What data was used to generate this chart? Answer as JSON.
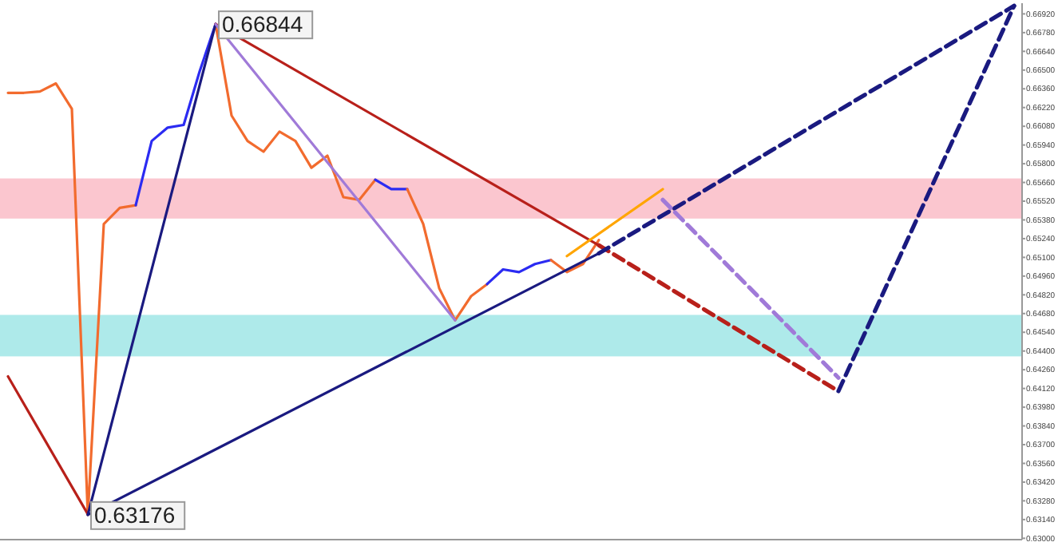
{
  "chart_data": {
    "type": "line",
    "categories": [
      null,
      null,
      null,
      null,
      null,
      null,
      null,
      null,
      null,
      null,
      null,
      null,
      null,
      null,
      null,
      null,
      null,
      null,
      null,
      null,
      null,
      null,
      null,
      null,
      null,
      null,
      null,
      null,
      null,
      null,
      null,
      null,
      null,
      null,
      null,
      null,
      null,
      null,
      null,
      null,
      null,
      null,
      null,
      null,
      null,
      null,
      null,
      null,
      null,
      null,
      null,
      null,
      null,
      null,
      null,
      null,
      null,
      null,
      null,
      null,
      null,
      null,
      null,
      null
    ],
    "ylim": [
      0.6299,
      0.67
    ],
    "yticks": [
      {
        "value": 0.63,
        "label": "0.63000"
      },
      {
        "value": 0.6314,
        "label": "0.63140"
      },
      {
        "value": 0.6328,
        "label": "0.63280"
      },
      {
        "value": 0.6342,
        "label": "0.63420"
      },
      {
        "value": 0.6356,
        "label": "0.63560"
      },
      {
        "value": 0.637,
        "label": "0.63700"
      },
      {
        "value": 0.6384,
        "label": "0.63840"
      },
      {
        "value": 0.6398,
        "label": "0.63980"
      },
      {
        "value": 0.6412,
        "label": "0.64120"
      },
      {
        "value": 0.6426,
        "label": "0.64260"
      },
      {
        "value": 0.644,
        "label": "0.64400"
      },
      {
        "value": 0.6454,
        "label": "0.64540"
      },
      {
        "value": 0.6468,
        "label": "0.64680"
      },
      {
        "value": 0.6482,
        "label": "0.64820"
      },
      {
        "value": 0.6496,
        "label": "0.64960"
      },
      {
        "value": 0.651,
        "label": "0.65100"
      },
      {
        "value": 0.6524,
        "label": "0.65240"
      },
      {
        "value": 0.6538,
        "label": "0.65380"
      },
      {
        "value": 0.6552,
        "label": "0.65520"
      },
      {
        "value": 0.6566,
        "label": "0.65660"
      },
      {
        "value": 0.658,
        "label": "0.65800"
      },
      {
        "value": 0.6594,
        "label": "0.65940"
      },
      {
        "value": 0.6608,
        "label": "0.66080"
      },
      {
        "value": 0.6622,
        "label": "0.66220"
      },
      {
        "value": 0.6636,
        "label": "0.66360"
      },
      {
        "value": 0.665,
        "label": "0.66500"
      },
      {
        "value": 0.6664,
        "label": "0.66640"
      },
      {
        "value": 0.6678,
        "label": "0.66780"
      },
      {
        "value": 0.6692,
        "label": "0.66920"
      }
    ],
    "tick_labels": "y",
    "grid": false,
    "marker": "none",
    "bands": [
      {
        "axis": "y",
        "from": 0.6539,
        "to": 0.6569,
        "color": "#fbc6cf"
      },
      {
        "axis": "y",
        "from": 0.6436,
        "to": 0.6467,
        "color": "#aeeaea"
      }
    ],
    "annotations": [
      "0.66844",
      "0.63176"
    ],
    "series": [
      {
        "color": "#f26b2e",
        "values": [
          0.6633,
          0.6633,
          0.6634,
          0.664,
          0.6621,
          0.63176,
          0.6535,
          0.6547,
          0.6549,
          null,
          null,
          null,
          null,
          null,
          null,
          null,
          null,
          null,
          null,
          null,
          null,
          null,
          null,
          null,
          null,
          null,
          null,
          null,
          null,
          null,
          null,
          null,
          null,
          null,
          null,
          null,
          null,
          null,
          null,
          null,
          null,
          null,
          null,
          null,
          null,
          null,
          null,
          null,
          null,
          null,
          null,
          null,
          null,
          null,
          null,
          null,
          null,
          null,
          null,
          null,
          null,
          null,
          null,
          null
        ]
      },
      {
        "color": "#2b2bf2",
        "values": [
          null,
          null,
          null,
          null,
          null,
          null,
          null,
          null,
          0.6549,
          0.6597,
          0.6607,
          0.6609,
          0.6649,
          0.66844,
          null,
          null,
          null,
          null,
          null,
          null,
          null,
          null,
          null,
          null,
          null,
          null,
          null,
          null,
          null,
          null,
          null,
          null,
          null,
          null,
          null,
          null,
          null,
          null,
          null,
          null,
          null,
          null,
          null,
          null,
          null,
          null,
          null,
          null,
          null,
          null,
          null,
          null,
          null,
          null,
          null,
          null,
          null,
          null,
          null,
          null,
          null,
          null,
          null,
          null
        ]
      },
      {
        "color": "#f26b2e",
        "values": [
          null,
          null,
          null,
          null,
          null,
          null,
          null,
          null,
          null,
          null,
          null,
          null,
          null,
          0.66844,
          0.6616,
          0.6597,
          0.6589,
          0.6604,
          0.6597,
          0.6577,
          0.6586,
          0.6555,
          0.6553,
          0.6568,
          null,
          null,
          null,
          null,
          null,
          null,
          null,
          null,
          null,
          null,
          null,
          null,
          null,
          null,
          null,
          null,
          null,
          null,
          null,
          null,
          null,
          null,
          null,
          null,
          null,
          null,
          null,
          null,
          null,
          null,
          null,
          null,
          null,
          null,
          null,
          null,
          null,
          null,
          null,
          null
        ]
      },
      {
        "color": "#2b2bf2",
        "values": [
          null,
          null,
          null,
          null,
          null,
          null,
          null,
          null,
          null,
          null,
          null,
          null,
          null,
          null,
          null,
          null,
          null,
          null,
          null,
          null,
          null,
          null,
          null,
          0.6568,
          0.6561,
          0.6561,
          null,
          null,
          null,
          null,
          null,
          null,
          null,
          null,
          null,
          null,
          null,
          null,
          null,
          null,
          null,
          null,
          null,
          null,
          null,
          null,
          null,
          null,
          null,
          null,
          null,
          null,
          null,
          null,
          null,
          null,
          null,
          null,
          null,
          null,
          null,
          null,
          null,
          null
        ]
      },
      {
        "color": "#f26b2e",
        "values": [
          null,
          null,
          null,
          null,
          null,
          null,
          null,
          null,
          null,
          null,
          null,
          null,
          null,
          null,
          null,
          null,
          null,
          null,
          null,
          null,
          null,
          null,
          null,
          null,
          null,
          0.6561,
          0.6535,
          0.6487,
          0.6463,
          0.6481,
          0.649,
          null,
          null,
          null,
          null,
          null,
          null,
          null,
          null,
          null,
          null,
          null,
          null,
          null,
          null,
          null,
          null,
          null,
          null,
          null,
          null,
          null,
          null,
          null,
          null,
          null,
          null,
          null,
          null,
          null,
          null,
          null,
          null,
          null
        ]
      },
      {
        "color": "#2b2bf2",
        "values": [
          null,
          null,
          null,
          null,
          null,
          null,
          null,
          null,
          null,
          null,
          null,
          null,
          null,
          null,
          null,
          null,
          null,
          null,
          null,
          null,
          null,
          null,
          null,
          null,
          null,
          null,
          null,
          null,
          null,
          null,
          0.649,
          0.6501,
          0.6499,
          0.6505,
          0.6508,
          null,
          null,
          null,
          null,
          null,
          null,
          null,
          null,
          null,
          null,
          null,
          null,
          null,
          null,
          null,
          null,
          null,
          null,
          null,
          null,
          null,
          null,
          null,
          null,
          null,
          null,
          null,
          null,
          null
        ]
      },
      {
        "color": "#f26b2e",
        "values": [
          null,
          null,
          null,
          null,
          null,
          null,
          null,
          null,
          null,
          null,
          null,
          null,
          null,
          null,
          null,
          null,
          null,
          null,
          null,
          null,
          null,
          null,
          null,
          null,
          null,
          null,
          null,
          null,
          null,
          null,
          null,
          null,
          null,
          null,
          0.6508,
          0.6499,
          0.6505,
          0.6523,
          null,
          null,
          null,
          null,
          null,
          null,
          null,
          null,
          null,
          null,
          null,
          null,
          null,
          null,
          null,
          null,
          null,
          null,
          null,
          null,
          null,
          null,
          null,
          null,
          null,
          null
        ]
      },
      {
        "color": "#b8201a",
        "values": [
          0.6421,
          null,
          null,
          null,
          null,
          0.6318,
          null,
          null,
          null,
          null,
          null,
          null,
          null,
          null,
          null,
          null,
          null,
          null,
          null,
          null,
          null,
          null,
          null,
          null,
          null,
          null,
          null,
          null,
          null,
          null,
          null,
          null,
          null,
          null,
          null,
          null,
          null,
          null,
          null,
          null,
          null,
          null,
          null,
          null,
          null,
          null,
          null,
          null,
          null,
          null,
          null,
          null,
          null,
          null,
          null,
          null,
          null,
          null,
          null,
          null,
          null,
          null,
          null,
          null
        ]
      },
      {
        "color": "#1a1a80",
        "values": [
          null,
          null,
          null,
          null,
          null,
          0.63176,
          null,
          null,
          null,
          null,
          null,
          null,
          null,
          0.66844,
          null,
          null,
          null,
          null,
          null,
          null,
          null,
          null,
          null,
          null,
          null,
          null,
          null,
          null,
          null,
          null,
          null,
          null,
          null,
          null,
          null,
          null,
          null,
          null,
          null,
          null,
          null,
          null,
          null,
          null,
          null,
          null,
          null,
          null,
          null,
          null,
          null,
          null,
          null,
          null,
          null,
          null,
          null,
          null,
          null,
          null,
          null,
          null,
          null,
          null
        ]
      },
      {
        "color": "#b8201a",
        "values": [
          null,
          null,
          null,
          null,
          null,
          null,
          null,
          null,
          null,
          null,
          null,
          null,
          null,
          0.66844,
          null,
          null,
          null,
          null,
          null,
          null,
          null,
          null,
          null,
          null,
          null,
          null,
          null,
          null,
          null,
          null,
          null,
          null,
          null,
          null,
          null,
          null,
          null,
          0.6519,
          null,
          null,
          null,
          null,
          null,
          null,
          null,
          null,
          null,
          null,
          null,
          null,
          null,
          null,
          null,
          null,
          null,
          null,
          null,
          null,
          null,
          null,
          null,
          null,
          null,
          null
        ]
      },
      {
        "color": "#b8201a",
        "line_style": "dashed",
        "values": [
          null,
          null,
          null,
          null,
          null,
          null,
          null,
          null,
          null,
          null,
          null,
          null,
          null,
          null,
          null,
          null,
          null,
          null,
          null,
          null,
          null,
          null,
          null,
          null,
          null,
          null,
          null,
          null,
          null,
          null,
          null,
          null,
          null,
          null,
          null,
          null,
          null,
          0.6519,
          null,
          null,
          null,
          null,
          null,
          null,
          null,
          null,
          null,
          null,
          null,
          null,
          null,
          null,
          0.641,
          null,
          null,
          null,
          null,
          null,
          null,
          null,
          null,
          null,
          null,
          null
        ]
      },
      {
        "color": "#a07ad8",
        "values": [
          null,
          null,
          null,
          null,
          null,
          null,
          null,
          null,
          null,
          null,
          null,
          null,
          null,
          0.66844,
          null,
          null,
          null,
          null,
          null,
          null,
          null,
          null,
          null,
          null,
          null,
          null,
          null,
          null,
          0.6463,
          null,
          null,
          null,
          null,
          null,
          null,
          null,
          null,
          null,
          null,
          null,
          null,
          null,
          null,
          null,
          null,
          null,
          null,
          null,
          null,
          null,
          null,
          null,
          null,
          null,
          null,
          null,
          null,
          null,
          null,
          null,
          null,
          null,
          null,
          null
        ]
      },
      {
        "color": "#1a1a80",
        "values": [
          null,
          null,
          null,
          null,
          null,
          0.63176,
          null,
          null,
          null,
          null,
          null,
          null,
          null,
          null,
          null,
          null,
          null,
          null,
          null,
          null,
          null,
          null,
          null,
          null,
          null,
          null,
          null,
          null,
          null,
          null,
          null,
          null,
          null,
          null,
          null,
          null,
          null,
          0.6513,
          null,
          null,
          null,
          null,
          null,
          null,
          null,
          null,
          null,
          null,
          null,
          null,
          null,
          null,
          null,
          null,
          null,
          null,
          null,
          null,
          null,
          null,
          null,
          null,
          null,
          null
        ]
      },
      {
        "color": "#ffa500",
        "values": [
          null,
          null,
          null,
          null,
          null,
          null,
          null,
          null,
          null,
          null,
          null,
          null,
          null,
          null,
          null,
          null,
          null,
          null,
          null,
          null,
          null,
          null,
          null,
          null,
          null,
          null,
          null,
          null,
          null,
          null,
          null,
          null,
          null,
          null,
          null,
          0.6511,
          null,
          null,
          null,
          null,
          null,
          0.6561,
          null,
          null,
          null,
          null,
          null,
          null,
          null,
          null,
          null,
          null,
          null,
          null,
          null,
          null,
          null,
          null,
          null,
          null,
          null,
          null,
          null,
          null
        ]
      },
      {
        "color": "#1a1a80",
        "line_style": "dashed",
        "values": [
          null,
          null,
          null,
          null,
          null,
          null,
          null,
          null,
          null,
          null,
          null,
          null,
          null,
          null,
          null,
          null,
          null,
          null,
          null,
          null,
          null,
          null,
          null,
          null,
          null,
          null,
          null,
          null,
          null,
          null,
          null,
          null,
          null,
          null,
          null,
          null,
          null,
          0.6513,
          null,
          null,
          null,
          null,
          null,
          null,
          null,
          null,
          null,
          null,
          null,
          null,
          null,
          null,
          null,
          null,
          null,
          null,
          null,
          null,
          null,
          null,
          null,
          null,
          null,
          0.6698
        ]
      },
      {
        "color": "#a07ad8",
        "line_style": "dashed",
        "values": [
          null,
          null,
          null,
          null,
          null,
          null,
          null,
          null,
          null,
          null,
          null,
          null,
          null,
          null,
          null,
          null,
          null,
          null,
          null,
          null,
          null,
          null,
          null,
          null,
          null,
          null,
          null,
          null,
          null,
          null,
          null,
          null,
          null,
          null,
          null,
          null,
          null,
          null,
          null,
          null,
          null,
          0.6553,
          null,
          null,
          null,
          null,
          null,
          null,
          null,
          null,
          null,
          null,
          0.642,
          null,
          null,
          null,
          null,
          null,
          null,
          null,
          null,
          null,
          null,
          null
        ]
      },
      {
        "color": "#1a1a80",
        "line_style": "dashed",
        "values": [
          null,
          null,
          null,
          null,
          null,
          null,
          null,
          null,
          null,
          null,
          null,
          null,
          null,
          null,
          null,
          null,
          null,
          null,
          null,
          null,
          null,
          null,
          null,
          null,
          null,
          null,
          null,
          null,
          null,
          null,
          null,
          null,
          null,
          null,
          null,
          null,
          null,
          null,
          null,
          null,
          null,
          null,
          null,
          null,
          null,
          null,
          null,
          null,
          null,
          null,
          null,
          null,
          0.641,
          null,
          null,
          null,
          null,
          null,
          null,
          null,
          null,
          null,
          null,
          0.6698
        ]
      }
    ]
  }
}
